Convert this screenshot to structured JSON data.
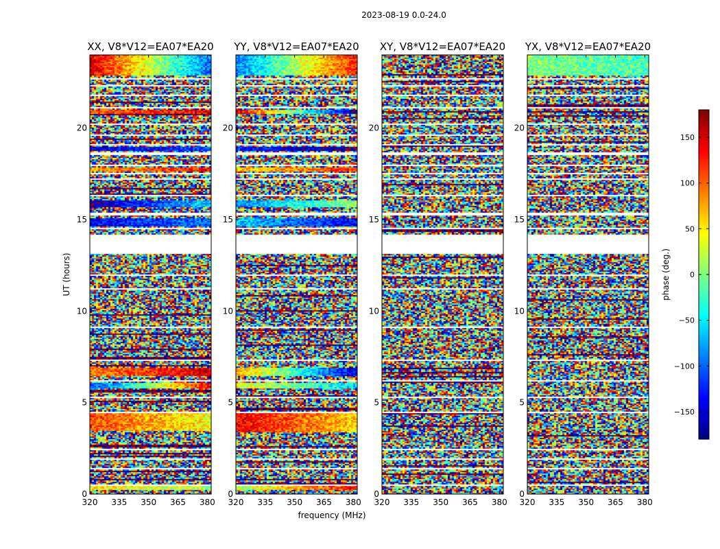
{
  "chart_data": {
    "type": "heatmap",
    "suptitle": "2023-08-19 0.0-24.0",
    "xlabel": "frequency (MHz)",
    "ylabel": "UT (hours)",
    "xlim": [
      320,
      382
    ],
    "ylim": [
      0,
      24
    ],
    "xticks": [
      320,
      335,
      350,
      365,
      380
    ],
    "yticks": [
      0,
      5,
      10,
      15,
      20
    ],
    "panels": [
      {
        "title": "XX, V8*V12=EA07*EA20",
        "pol": "XX",
        "coherent_bands": [
          {
            "t0": 0.25,
            "t1": 0.5,
            "phase_low": 60,
            "phase_high": 10
          },
          {
            "t0": 3.5,
            "t1": 4.5,
            "phase_low": 110,
            "phase_high": 40
          },
          {
            "t0": 5.8,
            "t1": 6.1,
            "phase_low": -120,
            "phase_high": 140
          },
          {
            "t0": 6.5,
            "t1": 6.9,
            "phase_low": 90,
            "phase_high": 150
          },
          {
            "t0": 14.7,
            "t1": 15.1,
            "phase_low": -140,
            "phase_high": -90
          },
          {
            "t0": 15.7,
            "t1": 16.1,
            "phase_low": -170,
            "phase_high": -60
          },
          {
            "t0": 17.7,
            "t1": 17.9,
            "phase_low": 80,
            "phase_high": 130
          },
          {
            "t0": 18.8,
            "t1": 19.0,
            "phase_low": -150,
            "phase_high": -110
          },
          {
            "t0": 20.8,
            "t1": 21.0,
            "phase_low": 100,
            "phase_high": 140
          },
          {
            "t0": 22.9,
            "t1": 24.0,
            "phase_low": 150,
            "phase_high": -100
          }
        ]
      },
      {
        "title": "YY, V8*V12=EA07*EA20",
        "pol": "YY",
        "coherent_bands": [
          {
            "t0": 0.25,
            "t1": 0.5,
            "phase_low": 20,
            "phase_high": 130
          },
          {
            "t0": 3.4,
            "t1": 4.5,
            "phase_low": 140,
            "phase_high": 60
          },
          {
            "t0": 5.8,
            "t1": 6.1,
            "phase_low": 40,
            "phase_high": -60
          },
          {
            "t0": 6.5,
            "t1": 6.9,
            "phase_low": 80,
            "phase_high": -150
          },
          {
            "t0": 14.7,
            "t1": 15.1,
            "phase_low": -60,
            "phase_high": -140
          },
          {
            "t0": 15.7,
            "t1": 16.1,
            "phase_low": -90,
            "phase_high": 10
          },
          {
            "t0": 17.7,
            "t1": 17.9,
            "phase_low": 60,
            "phase_high": 120
          },
          {
            "t0": 18.8,
            "t1": 19.0,
            "phase_low": -120,
            "phase_high": -170
          },
          {
            "t0": 20.8,
            "t1": 21.0,
            "phase_low": 150,
            "phase_high": -170
          },
          {
            "t0": 22.9,
            "t1": 24.0,
            "phase_low": -90,
            "phase_high": 130
          }
        ]
      },
      {
        "title": "XY, V8*V12=EA07*EA20",
        "pol": "XY",
        "coherent_bands": []
      },
      {
        "title": "YX, V8*V12=EA07*EA20",
        "pol": "YX",
        "coherent_bands": [
          {
            "t0": 22.9,
            "t1": 24.0,
            "phase_low": 0,
            "phase_high": -20
          }
        ]
      }
    ],
    "flagged_hours": [
      [
        0.5,
        0.55
      ],
      [
        1.4,
        1.48
      ],
      [
        1.9,
        1.96
      ],
      [
        2.4,
        2.48
      ],
      [
        3.3,
        3.36
      ],
      [
        4.5,
        4.56
      ],
      [
        5.3,
        5.34
      ],
      [
        6.2,
        6.28
      ],
      [
        7.3,
        7.36
      ],
      [
        8.4,
        8.46
      ],
      [
        9.1,
        9.15
      ],
      [
        11.2,
        11.26
      ],
      [
        12.0,
        12.06
      ],
      [
        13.2,
        14.2
      ],
      [
        14.5,
        14.56
      ],
      [
        15.3,
        15.4
      ],
      [
        16.3,
        16.38
      ],
      [
        17.2,
        17.28
      ],
      [
        17.55,
        17.6
      ],
      [
        18.0,
        18.06
      ],
      [
        18.6,
        18.7
      ],
      [
        19.1,
        19.16
      ],
      [
        19.6,
        19.66
      ],
      [
        20.2,
        20.26
      ],
      [
        21.1,
        21.16
      ],
      [
        21.8,
        21.86
      ],
      [
        22.3,
        22.36
      ],
      [
        22.7,
        22.76
      ]
    ],
    "colorbar": {
      "label": "phase (deg.)",
      "range": [
        -180,
        180
      ],
      "ticks": [
        150,
        100,
        50,
        0,
        -50,
        -100,
        -150
      ],
      "tick_labels": [
        "150",
        "100",
        "50",
        "0",
        "−50",
        "−100",
        "−150"
      ],
      "colormap": "jet"
    }
  }
}
